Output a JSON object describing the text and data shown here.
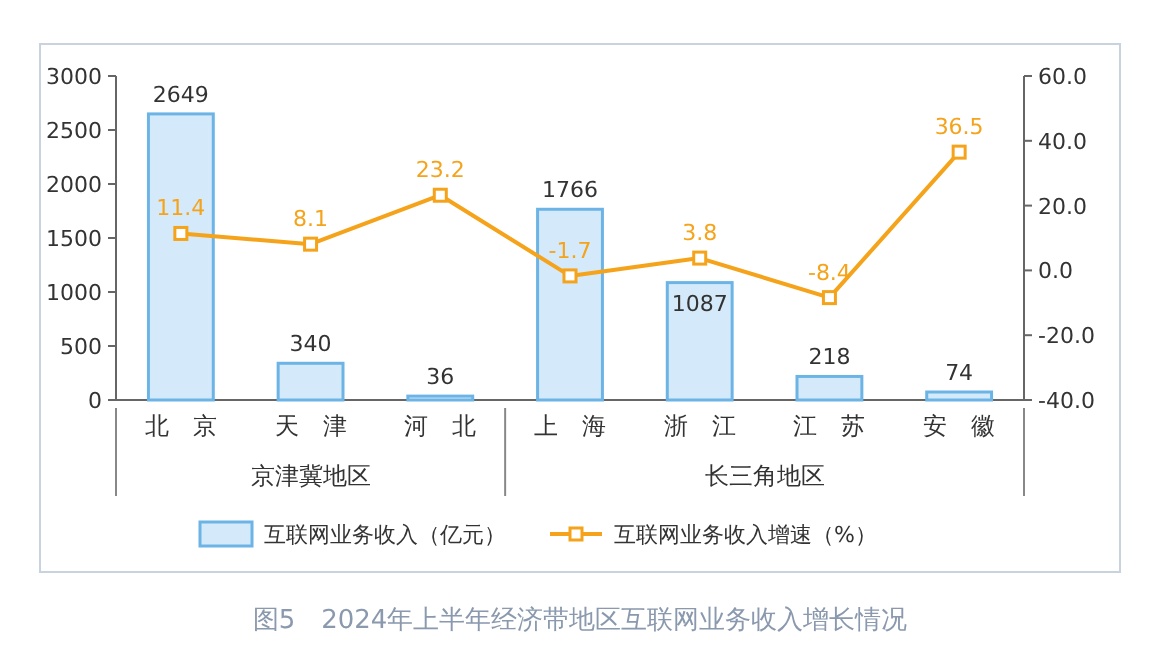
{
  "chart_data": {
    "type": "bar",
    "title": "图5　2024年上半年经济带地区互联网业务收入增长情况",
    "categories": [
      "北　京",
      "天　津",
      "河　北",
      "上　海",
      "浙　江",
      "江　苏",
      "安　徽"
    ],
    "series": [
      {
        "name": "互联网业务收入（亿元）",
        "color": "#d4e9f9",
        "values": [
          2649,
          340,
          36,
          1766,
          1087,
          218,
          74
        ]
      },
      {
        "name": "互联网业务收入增速（%）",
        "type": "line",
        "axis": "y2",
        "color": "#f5a31a",
        "values": [
          11.4,
          8.1,
          23.2,
          -1.7,
          3.8,
          -8.4,
          36.5
        ]
      }
    ],
    "ylim": [
      0,
      3000
    ],
    "yticks": [
      0,
      500,
      1000,
      1500,
      2000,
      2500,
      3000
    ],
    "y2lim": [
      -40,
      60
    ],
    "y2ticks": [
      {
        "value": -40,
        "label": "-40.0"
      },
      {
        "value": -20,
        "label": "-20.0"
      },
      {
        "value": 0,
        "label": "0.0"
      },
      {
        "value": 20,
        "label": "20.0"
      },
      {
        "value": 40,
        "label": "40.0"
      },
      {
        "value": 60,
        "label": "60.0"
      }
    ],
    "data_labels": true,
    "legend": "bottom",
    "marker": "square",
    "annotations": [
      "京津冀地区",
      "长三角地区"
    ]
  }
}
